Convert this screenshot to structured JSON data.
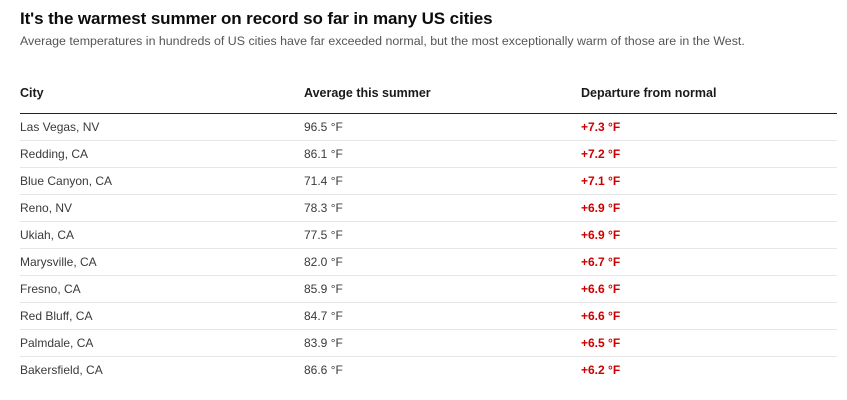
{
  "title": "It's the warmest summer on record so far in many US cities",
  "subtitle": "Average temperatures in hundreds of US cities have far exceeded normal, but the most exceptionally warm of those are in the West.",
  "colors": {
    "departure_text": "#cc0000",
    "header_rule": "#222222",
    "row_rule": "#e6e6e6"
  },
  "chart_data": {
    "type": "table",
    "columns": [
      "City",
      "Average this summer",
      "Departure from normal"
    ],
    "rows": [
      [
        "Las Vegas, NV",
        "96.5 °F",
        "+7.3 °F"
      ],
      [
        "Redding, CA",
        "86.1 °F",
        "+7.2 °F"
      ],
      [
        "Blue Canyon, CA",
        "71.4 °F",
        "+7.1 °F"
      ],
      [
        "Reno, NV",
        "78.3 °F",
        "+6.9 °F"
      ],
      [
        "Ukiah, CA",
        "77.5 °F",
        "+6.9 °F"
      ],
      [
        "Marysville, CA",
        "82.0 °F",
        "+6.7 °F"
      ],
      [
        "Fresno, CA",
        "85.9 °F",
        "+6.6 °F"
      ],
      [
        "Red Bluff, CA",
        "84.7 °F",
        "+6.6 °F"
      ],
      [
        "Palmdale, CA",
        "83.9 °F",
        "+6.5 °F"
      ],
      [
        "Bakersfield, CA",
        "86.6 °F",
        "+6.2 °F"
      ]
    ]
  }
}
